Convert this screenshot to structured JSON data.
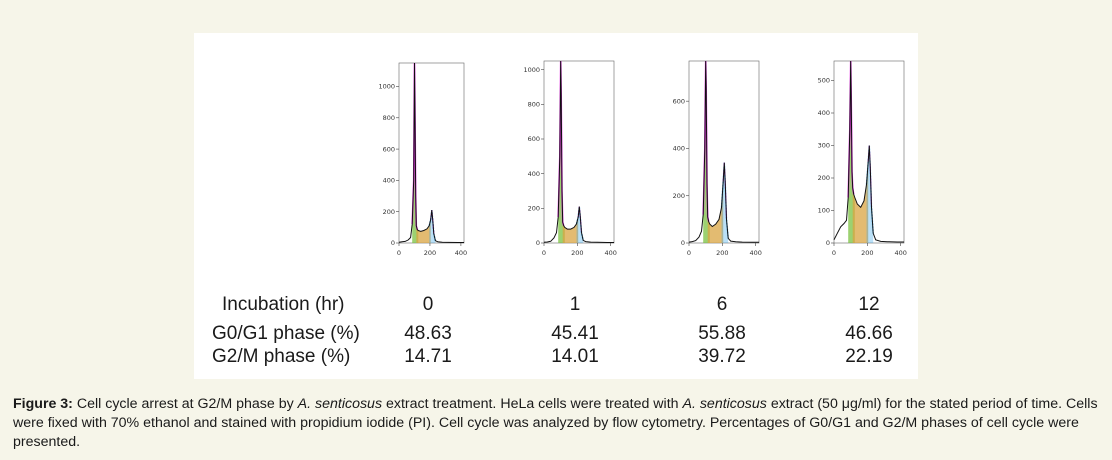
{
  "chart_data": [
    {
      "type": "line",
      "incubation_hr": "0",
      "x_ticks": [
        0,
        200,
        400
      ],
      "y_ticks": [
        0,
        200,
        400,
        600,
        800,
        1000
      ],
      "xlim": [
        0,
        420
      ],
      "ylim": [
        0,
        1150
      ],
      "series": [
        {
          "x": [
            0,
            20,
            40,
            60,
            75,
            85,
            95,
            100,
            103,
            108,
            112,
            118,
            125,
            140,
            160,
            180,
            195,
            205,
            212,
            218,
            225,
            235,
            250,
            280,
            320,
            380,
            420
          ],
          "values": [
            5,
            8,
            10,
            20,
            35,
            120,
            400,
            1150,
            900,
            300,
            110,
            85,
            80,
            75,
            80,
            90,
            110,
            150,
            210,
            150,
            60,
            15,
            8,
            5,
            4,
            3,
            3
          ]
        }
      ]
    },
    {
      "type": "line",
      "incubation_hr": "1",
      "x_ticks": [
        0,
        200,
        400
      ],
      "y_ticks": [
        0,
        200,
        400,
        600,
        800,
        1000
      ],
      "xlim": [
        0,
        420
      ],
      "ylim": [
        0,
        1050
      ],
      "series": [
        {
          "x": [
            0,
            20,
            40,
            60,
            75,
            85,
            95,
            100,
            103,
            108,
            112,
            118,
            125,
            140,
            160,
            180,
            195,
            205,
            212,
            218,
            225,
            235,
            250,
            280,
            320,
            380,
            420
          ],
          "values": [
            4,
            6,
            10,
            30,
            60,
            150,
            500,
            1050,
            850,
            300,
            120,
            100,
            90,
            80,
            80,
            90,
            110,
            150,
            210,
            150,
            60,
            15,
            8,
            5,
            4,
            3,
            3
          ]
        }
      ]
    },
    {
      "type": "line",
      "incubation_hr": "6",
      "x_ticks": [
        0,
        200,
        400
      ],
      "y_ticks": [
        0,
        200,
        400,
        600
      ],
      "xlim": [
        0,
        420
      ],
      "ylim": [
        0,
        770
      ],
      "series": [
        {
          "x": [
            0,
            20,
            40,
            60,
            75,
            85,
            95,
            100,
            103,
            108,
            112,
            118,
            125,
            140,
            160,
            180,
            195,
            205,
            212,
            218,
            225,
            235,
            250,
            280,
            320,
            380,
            420
          ],
          "values": [
            4,
            6,
            10,
            25,
            50,
            120,
            400,
            770,
            650,
            250,
            110,
            90,
            80,
            70,
            80,
            100,
            150,
            260,
            340,
            250,
            100,
            20,
            8,
            5,
            4,
            3,
            3
          ]
        }
      ]
    },
    {
      "type": "line",
      "incubation_hr": "12",
      "x_ticks": [
        0,
        200,
        400
      ],
      "y_ticks": [
        0,
        100,
        200,
        300,
        400,
        500
      ],
      "xlim": [
        0,
        420
      ],
      "ylim": [
        0,
        560
      ],
      "series": [
        {
          "x": [
            0,
            20,
            40,
            60,
            75,
            85,
            95,
            100,
            103,
            108,
            112,
            118,
            125,
            140,
            160,
            180,
            195,
            205,
            212,
            218,
            225,
            235,
            250,
            280,
            320,
            380,
            420
          ],
          "values": [
            10,
            30,
            50,
            60,
            70,
            140,
            350,
            560,
            450,
            220,
            170,
            150,
            140,
            120,
            110,
            130,
            180,
            250,
            300,
            230,
            110,
            30,
            10,
            5,
            4,
            3,
            3
          ]
        }
      ]
    }
  ],
  "table": {
    "rows": [
      {
        "label": "Incubation (hr)",
        "values": [
          "0",
          "1",
          "6",
          "12"
        ]
      },
      {
        "label": "G0/G1 phase (%)",
        "values": [
          "48.63",
          "45.41",
          "55.88",
          "46.66"
        ]
      },
      {
        "label": "G2/M phase (%)",
        "values": [
          "14.71",
          "14.01",
          "39.72",
          "22.19"
        ]
      }
    ]
  },
  "caption": {
    "label": "Figure 3:",
    "p1": " Cell cycle arrest at G2/M phase by ",
    "sp1": "A. senticosus",
    "p2": " extract treatment. HeLa cells were treated with ",
    "sp2": "A. senticosus",
    "p3": " extract (50 μg/ml) for the stated period of time. Cells were fixed with 70% ethanol and stained with propidium iodide (PI). Cell cycle was analyzed by flow cytometry. Percentages of G0/G1 and G2/M phases of cell cycle were presented."
  },
  "colors": {
    "background": "#f6f5e9",
    "panel": "#ffffff",
    "histogram_line": "#111111",
    "g1_peak": "#ee33ee",
    "g1_fill": "#7bc242",
    "s_fill": "#d9a441",
    "g2_peak": "#3aa6e8"
  }
}
